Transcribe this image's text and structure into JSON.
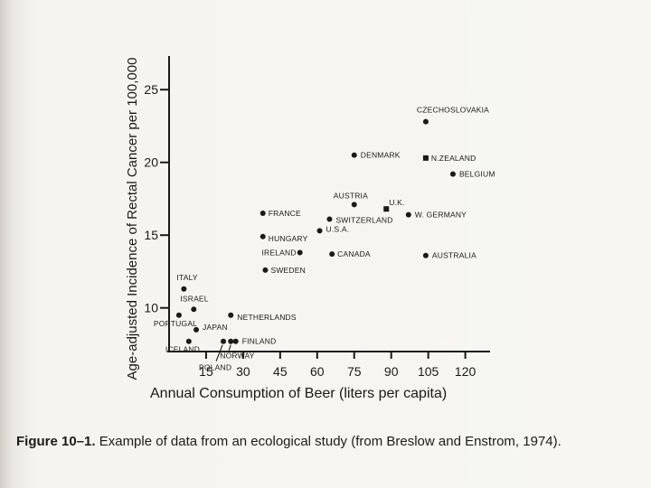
{
  "chart_data": {
    "type": "scatter",
    "xlabel": "Annual Consumption of Beer (liters per capita)",
    "ylabel": "Age-adjusted Incidence of Rectal Cancer per 100,000",
    "xlim": [
      0,
      125
    ],
    "ylim": [
      7,
      26
    ],
    "x_ticks": [
      15,
      30,
      45,
      60,
      75,
      90,
      105,
      120
    ],
    "y_ticks": [
      10,
      15,
      20,
      25
    ],
    "points": [
      {
        "label": "CZECHOSLOVAKIA",
        "x": 104,
        "y": 22.8
      },
      {
        "label": "DENMARK",
        "x": 75,
        "y": 20.5
      },
      {
        "label": "N.ZEALAND",
        "x": 104,
        "y": 20.3
      },
      {
        "label": "BELGIUM",
        "x": 115,
        "y": 19.2
      },
      {
        "label": "AUSTRIA",
        "x": 75,
        "y": 17.1
      },
      {
        "label": "U.K.",
        "x": 88,
        "y": 16.8
      },
      {
        "label": "W. GERMANY",
        "x": 97,
        "y": 16.4
      },
      {
        "label": "FRANCE",
        "x": 38,
        "y": 16.5
      },
      {
        "label": "SWITZERLAND",
        "x": 65,
        "y": 16.1
      },
      {
        "label": "U.S.A.",
        "x": 61,
        "y": 15.3
      },
      {
        "label": "HUNGARY",
        "x": 38,
        "y": 14.9
      },
      {
        "label": "IRELAND",
        "x": 53,
        "y": 13.8
      },
      {
        "label": "CANADA",
        "x": 66,
        "y": 13.7
      },
      {
        "label": "AUSTRALIA",
        "x": 104,
        "y": 13.6
      },
      {
        "label": "SWEDEN",
        "x": 39,
        "y": 12.6
      },
      {
        "label": "ITALY",
        "x": 6,
        "y": 11.3
      },
      {
        "label": "ISRAEL",
        "x": 10,
        "y": 9.9
      },
      {
        "label": "PORTUGAL",
        "x": 4,
        "y": 9.5
      },
      {
        "label": "NETHERLANDS",
        "x": 25,
        "y": 9.5
      },
      {
        "label": "JAPAN",
        "x": 11,
        "y": 8.5
      },
      {
        "label": "ICELAND",
        "x": 8,
        "y": 7.7
      },
      {
        "label": "FINLAND",
        "x": 27,
        "y": 7.7
      },
      {
        "label": "NORWAY",
        "x": 25,
        "y": 7.7
      },
      {
        "label": "POLAND",
        "x": 22,
        "y": 7.7
      }
    ]
  },
  "caption": {
    "figure_label": "Figure 10–1.",
    "text": "Example of data from an ecological study (from Breslow and Enstrom, 1974)."
  }
}
